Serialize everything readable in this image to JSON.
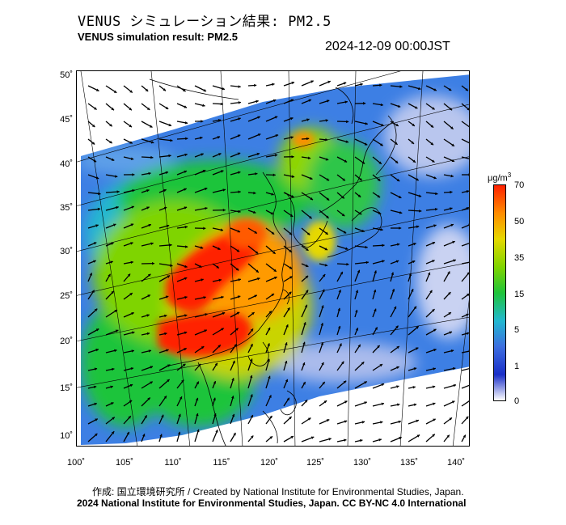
{
  "header": {
    "title_jp": "VENUS シミュレーション結果: PM2.5",
    "title_en": "VENUS simulation result: PM2.5",
    "timestamp": "2024-12-09 00:00JST"
  },
  "map": {
    "lat_labels": [
      "50˚",
      "45˚",
      "40˚",
      "35˚",
      "30˚",
      "25˚",
      "20˚",
      "15˚",
      "10˚"
    ],
    "lon_labels": [
      "100˚",
      "105˚",
      "110˚",
      "115˚",
      "120˚",
      "125˚",
      "130˚",
      "135˚",
      "140˚"
    ],
    "lat_range": [
      10,
      50
    ],
    "lon_range": [
      100,
      140
    ],
    "layer": "PM2.5 concentration with wind vectors"
  },
  "colorbar": {
    "unit": "μg/m",
    "unit_sup": "3",
    "ticks": [
      "70",
      "50",
      "35",
      "15",
      "5",
      "1",
      "0"
    ],
    "colors": [
      "#ff2000",
      "#ff8c00",
      "#e6d800",
      "#7fd400",
      "#1fc43a",
      "#22b8d0",
      "#3d6fe0",
      "#1a2fc8",
      "#ffffff"
    ]
  },
  "footer": {
    "credit_line": "作成: 国立環境研究所 / Created by National Institute for Environmental Studies, Japan.",
    "copyright_line": "2024 National Institute for Environmental Studies, Japan. CC BY-NC 4.0 International"
  }
}
